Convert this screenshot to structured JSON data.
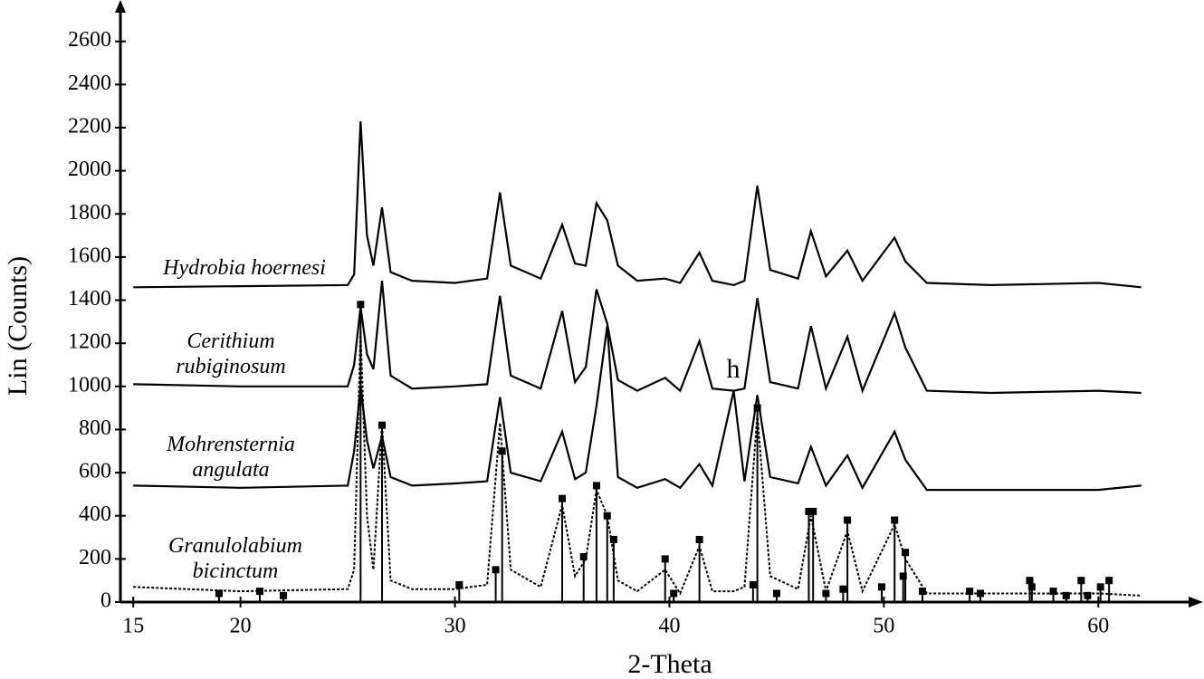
{
  "chart_data": {
    "type": "line",
    "x_label": "2-Theta",
    "y_label": "Lin (Counts)",
    "xlim": [
      14.4,
      64.8
    ],
    "ylim": [
      0,
      2750
    ],
    "xticks": [
      15,
      20,
      30,
      40,
      50,
      60
    ],
    "yticks": [
      0,
      200,
      400,
      600,
      800,
      1000,
      1200,
      1400,
      1600,
      1800,
      2000,
      2200,
      2400,
      2600
    ],
    "x": [
      15,
      20,
      25,
      25.3,
      25.6,
      25.9,
      26.2,
      26.6,
      27,
      28,
      30,
      31.5,
      32.1,
      32.6,
      34,
      35,
      35.6,
      36.1,
      36.6,
      37.1,
      37.6,
      38.5,
      39.8,
      40.5,
      41.4,
      42,
      43,
      43.5,
      44.1,
      44.7,
      46,
      46.6,
      47.3,
      48.3,
      49,
      50.5,
      51,
      52,
      55,
      60,
      62
    ],
    "series": [
      {
        "name": "Hydrobia hoernesi",
        "color": "#000000",
        "line_style": "solid",
        "values": [
          1460,
          1465,
          1470,
          1520,
          2230,
          1700,
          1560,
          1830,
          1530,
          1490,
          1480,
          1500,
          1900,
          1560,
          1500,
          1750,
          1570,
          1560,
          1850,
          1770,
          1560,
          1490,
          1500,
          1480,
          1620,
          1490,
          1470,
          1490,
          1930,
          1540,
          1500,
          1720,
          1510,
          1630,
          1490,
          1690,
          1580,
          1480,
          1470,
          1480,
          1460
        ]
      },
      {
        "name": "Cerithium rubiginosum",
        "color": "#000000",
        "line_style": "solid",
        "values": [
          1010,
          1000,
          1000,
          1100,
          1370,
          1150,
          1080,
          1490,
          1050,
          990,
          1000,
          1010,
          1420,
          1050,
          990,
          1350,
          1020,
          1090,
          1450,
          1290,
          1030,
          980,
          1040,
          980,
          1210,
          990,
          980,
          990,
          1410,
          1020,
          990,
          1280,
          990,
          1230,
          980,
          1340,
          1180,
          980,
          970,
          980,
          970
        ]
      },
      {
        "name": "Mohrensternia angulata",
        "color": "#000000",
        "line_style": "solid",
        "values": [
          540,
          530,
          540,
          700,
          1000,
          750,
          620,
          770,
          580,
          540,
          550,
          560,
          950,
          600,
          560,
          790,
          570,
          600,
          910,
          1280,
          580,
          530,
          570,
          530,
          640,
          540,
          980,
          560,
          960,
          580,
          550,
          720,
          540,
          680,
          530,
          790,
          660,
          520,
          520,
          520,
          540
        ]
      },
      {
        "name": "Granulolabium bicinctum",
        "color": "#000000",
        "line_style": "dotted",
        "values": [
          70,
          50,
          60,
          150,
          1250,
          400,
          150,
          830,
          100,
          60,
          60,
          80,
          830,
          150,
          70,
          450,
          120,
          200,
          520,
          400,
          100,
          50,
          150,
          40,
          260,
          50,
          50,
          70,
          870,
          120,
          60,
          400,
          50,
          330,
          50,
          360,
          200,
          40,
          40,
          40,
          30
        ]
      }
    ],
    "reference": {
      "color": "#000000",
      "x": [
        19,
        20.9,
        22,
        25.6,
        26.6,
        30.2,
        31.9,
        32.2,
        35,
        36,
        36.6,
        37.1,
        37.4,
        39.8,
        40.2,
        41.4,
        43.9,
        44.1,
        45,
        46.5,
        46.7,
        47.3,
        48.1,
        48.3,
        49.9,
        50.5,
        50.9,
        51,
        51.8,
        54,
        54.5,
        56.8,
        56.9,
        57.9,
        58.5,
        59.2,
        59.5,
        60.1,
        60.5
      ],
      "values": [
        40,
        50,
        30,
        1380,
        820,
        80,
        150,
        700,
        480,
        210,
        540,
        400,
        290,
        200,
        40,
        290,
        80,
        900,
        40,
        420,
        420,
        40,
        60,
        380,
        70,
        380,
        120,
        230,
        50,
        50,
        40,
        100,
        70,
        50,
        30,
        100,
        30,
        70,
        100
      ]
    },
    "annotations": [
      "h"
    ]
  }
}
